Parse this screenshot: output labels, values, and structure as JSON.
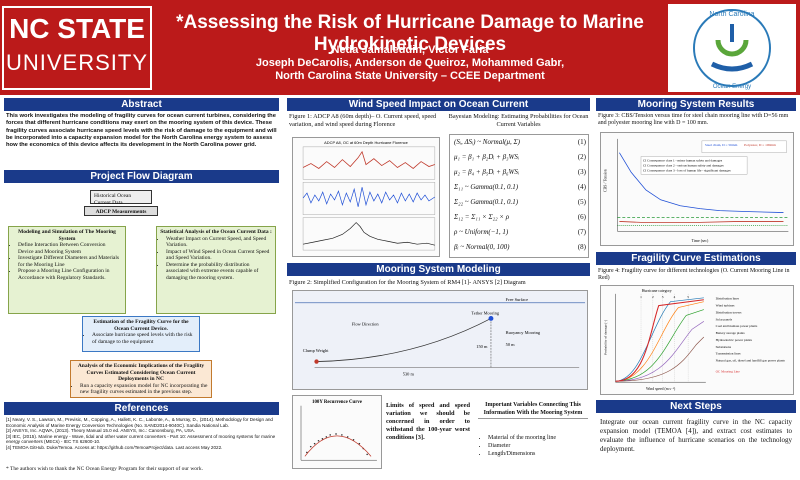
{
  "header": {
    "logo_line1": "NC STATE",
    "logo_line2": "UNIVERSITY",
    "title": "*Assessing the Risk of Hurricane Damage to Marine Hydrokinetic Devices",
    "authors_1": "Neda Jamaleddin, Victor Faria",
    "authors_2": "Joseph DeCarolis, Anderson de Queiroz, Mohammed Gabr,",
    "department": "North Carolina State University – CCEE Department",
    "seal_text": "North Carolina Renewable Ocean Energy Program"
  },
  "colors": {
    "header_red": "#bb1a1a",
    "section_blue": "#1a3a8a"
  },
  "abstract": {
    "heading": "Abstract",
    "body": "This work investigates the modeling of fragility curves for ocean current turbines, considering the forces that different hurricane conditions may exert on the mooring system of this device. These fragility curves associate hurricane speed levels with the risk of damage to the equipment and will be incorporated into a capacity expansion model for the North Carolina energy system to assess how the economics of this device affects its development in the North Carolina power grid."
  },
  "flow": {
    "heading": "Project Flow Diagram",
    "box_input": "Historical Ocean Current Data",
    "box_adcp": "ADCP Measurements",
    "box_left_title": "Modeling and Simulation of The Mooring System",
    "box_left_items": [
      "Define Interaction Between Conversion Device and Mooring System",
      "Investigate Different Diameters and Materials for the Mooring Line",
      "Propose a Mooring Line Configuration in Accordance with Regulatory Standards."
    ],
    "box_right_title": "Statistical Analysis of the Ocean Current Data :",
    "box_right_items": [
      "Weather Impact on Current Speed, and Speed Variation.",
      "Impact of Wind Speed in Ocean Current Speed and Speed Variation.",
      "Determine the probability distribution associated with extreme events capable of damaging the mooring system."
    ],
    "box_mid_title": "Estimation of the Fragility Curve for the Ocean Current Device.",
    "box_mid_items": [
      "Associate hurricane speed levels with the risk of damage to the equipment"
    ],
    "box_bot_title": "Analysis of the Economic Implications of the Fragility Curves Estimated Considering Ocean Current Deployments in NC",
    "box_bot_items": [
      "Run a capacity expansion model for NC incorporating the new fragility curves estimated in the previous step."
    ]
  },
  "references": {
    "heading": "References",
    "items": [
      "[1] Neary, V. S., Lawson, M., Previsic, M., Copping, A., Hallett, K. C., Labonte, A., & Murray, D., (2014). Methodology for Design and Economic Analysis of Marine Energy Conversion Technologies (No. SAND2014-9040C). Sandia National Lab.",
      "[2] ANSYS, Inc. AQWA, (2013). Theory Manual 15.0 ed. ANSYS, Inc.: Canonsburg, PA, USA.",
      "[3] IEC, (2015). Marine energy - Wave, tidal and other water current converters - Part 10: Assessment of mooring systems for marine energy converters (MECs) - IEC TS 62600-10.",
      "[4] TEMOA GitHub. Duke/Temoa. Access at: https://github.com/TemoaProject/data. Last access May 2022."
    ],
    "thanks": "* The authors wish to thank the NC Ocean Energy Program for their support of our work."
  },
  "wind": {
    "heading": "Wind Speed Impact on Ocean Current",
    "fig1": "Figure 1: ADCP A8 (60m depth)– O. Current speed, speed variation, and wind speed during Florence",
    "chart_title": "ADCP A8, OC at 60m Depth Hurricane Florence",
    "bayes_title": "Bayesian Modeling: Estimating Probabilities for Ocean Current Variables",
    "equations": [
      {
        "lhs": "(Sᵢ, ΔSᵢ) ~ Normal(μ, Σ)",
        "num": "(1)"
      },
      {
        "lhs": "μ₁ = β₁ + β₂Dᵢ + β₃WSᵢ",
        "num": "(2)"
      },
      {
        "lhs": "μ₂ = β₄ + β₅Dᵢ + β₆WSᵢ",
        "num": "(3)"
      },
      {
        "lhs": "Σ₁₁ ~ Gamma(0.1, 0.1)",
        "num": "(4)"
      },
      {
        "lhs": "Σ₂₂ ~ Gamma(0.1, 0.1)",
        "num": "(5)"
      },
      {
        "lhs": "Σ₁₂ = Σ₁₁ × Σ₂₂ × ρ",
        "num": "(6)"
      },
      {
        "lhs": "ρ ~ Uniform(−1, 1)",
        "num": "(7)"
      },
      {
        "lhs": "βᵢ ~ Normal(0, 100)",
        "num": "(8)"
      }
    ]
  },
  "mooring_model": {
    "heading": "Mooring System Modeling",
    "fig2": "Figure 2: Simplified Configuration for the Mooring System of RM4 [1]- ANSYS [2] Diagram",
    "labels": {
      "flow": "Flow Direction",
      "clump": "Clump Weight",
      "tether": "Tether Mooring",
      "buoy": "Buoyancy Mooring",
      "free": "Free Surface",
      "d150": "150 m",
      "d50": "50 m",
      "d530": "530 m"
    },
    "curve_title": "100Y Recurrence Curve",
    "limits_text": "Limits of speed and speed variation we should be concerned in order to withstand the 100-year worst conditions [3].",
    "vars_title": "Important Variables Connecting This Information With the Mooring System",
    "vars_items": [
      "Material of the mooring line",
      "Diameter",
      "Length/Dimensions"
    ]
  },
  "results": {
    "heading": "Mooring System Results",
    "fig3": "Figure 3: CBS/Tension versus time for steel chain mooring line with D=56 mm and polyester mooring line with D = 100 mm.",
    "fig3_ylabel": "CBS / Tension",
    "fig3_xlabel": "Time (sec)",
    "fig3_legend": [
      "Steel chain, D = 56mm",
      "Polyester, D = 100mm"
    ],
    "fig3_notes": [
      "CI Consequence class 1 - minor human safety and damages",
      "CI Consequence class 2 - serious human safety and damages",
      "CI Consequence class 3 - loss of human life - significant damages"
    ]
  },
  "fragility": {
    "heading": "Fragility Curve Estimations",
    "fig4": "Figure 4: Fragility curve for different technologies (O. Current Mooring Line in Red)",
    "chart_title": "Hurricane category",
    "categories": [
      "1",
      "2",
      "3",
      "4",
      "5"
    ],
    "ylabel": "Probability of damage [-]",
    "xlabel": "Wind speed (m s⁻¹)",
    "legend": [
      "Distribution lines",
      "Wind turbines",
      "Distribution towers",
      "Solar panels",
      "Coal and biomass power plants",
      "Battery storage plants",
      "Hydroelectric power plants",
      "Substations",
      "Transmission lines",
      "Natural gas, oil, diesel and landfill gas power plants",
      "OC Mooring Line"
    ]
  },
  "next": {
    "heading": "Next Steps",
    "body": "Integrate our ocean current fragility curve in the NC capacity expansion model (TEMOA [4]), and extract cost estimates to evaluate the influence of hurricane scenarios on the technology deployment."
  }
}
